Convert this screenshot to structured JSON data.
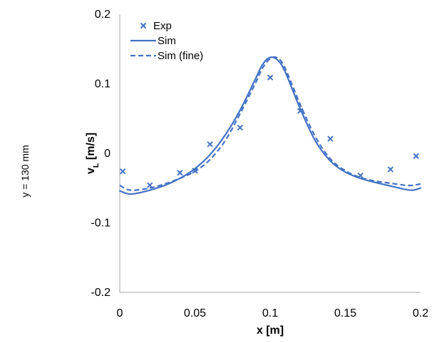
{
  "side_label": "y = 130 mm",
  "chart_data": {
    "type": "line",
    "title": "",
    "xlabel": "x [m]",
    "ylabel_main": "v",
    "ylabel_sub": "L",
    "ylabel_unit": " [m/s]",
    "xlim": [
      0,
      0.2
    ],
    "ylim": [
      -0.2,
      0.2
    ],
    "xticks": [
      0,
      0.05,
      0.1,
      0.15,
      0.2
    ],
    "xtick_labels": [
      "0",
      "0.05",
      "0.1",
      "0.15",
      "0.2"
    ],
    "yticks": [
      -0.2,
      -0.1,
      0,
      0.1,
      0.2
    ],
    "ytick_labels": [
      "-0.2",
      "-0.1",
      "0",
      "0.1",
      "0.2"
    ],
    "grid": false,
    "legend_position": "top-left",
    "color": "#4472c4",
    "series": [
      {
        "name": "Exp",
        "style": "marker-x",
        "x": [
          0.002,
          0.02,
          0.04,
          0.05,
          0.06,
          0.08,
          0.1,
          0.12,
          0.14,
          0.16,
          0.18,
          0.197
        ],
        "y": [
          -0.026,
          -0.046,
          -0.028,
          -0.025,
          0.013,
          0.037,
          0.109,
          0.061,
          0.021,
          -0.032,
          -0.023,
          -0.004
        ]
      },
      {
        "name": "Sim",
        "style": "solid",
        "x": [
          0.0,
          0.005,
          0.01,
          0.02,
          0.03,
          0.04,
          0.05,
          0.06,
          0.07,
          0.08,
          0.09,
          0.095,
          0.1,
          0.105,
          0.11,
          0.12,
          0.13,
          0.14,
          0.15,
          0.16,
          0.17,
          0.18,
          0.19,
          0.195,
          0.2
        ],
        "y": [
          -0.054,
          -0.058,
          -0.058,
          -0.053,
          -0.046,
          -0.036,
          -0.022,
          -0.002,
          0.026,
          0.062,
          0.106,
          0.128,
          0.138,
          0.134,
          0.117,
          0.064,
          0.018,
          -0.011,
          -0.027,
          -0.036,
          -0.042,
          -0.047,
          -0.052,
          -0.053,
          -0.05
        ]
      },
      {
        "name": "Sim (fine)",
        "style": "dashed",
        "x": [
          0.0,
          0.005,
          0.01,
          0.02,
          0.03,
          0.04,
          0.05,
          0.06,
          0.07,
          0.08,
          0.09,
          0.095,
          0.1,
          0.105,
          0.11,
          0.12,
          0.13,
          0.14,
          0.15,
          0.16,
          0.17,
          0.18,
          0.19,
          0.195,
          0.2
        ],
        "y": [
          -0.046,
          -0.052,
          -0.053,
          -0.05,
          -0.044,
          -0.036,
          -0.026,
          -0.009,
          0.018,
          0.057,
          0.1,
          0.123,
          0.136,
          0.137,
          0.122,
          0.07,
          0.024,
          -0.008,
          -0.025,
          -0.035,
          -0.04,
          -0.043,
          -0.046,
          -0.046,
          -0.044
        ]
      }
    ]
  }
}
